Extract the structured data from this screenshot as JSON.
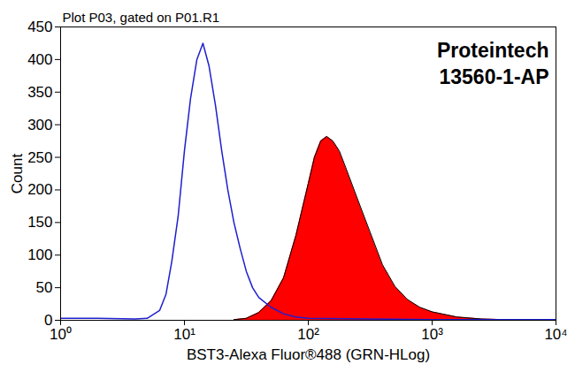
{
  "chart_data": {
    "type": "line",
    "title": "Plot P03, gated on P01.R1",
    "annotations": [
      "Proteintech",
      "13560-1-AP"
    ],
    "x_label": "BST3-Alexa Fluor®488 (GRN-HLog)",
    "y_label": "Count",
    "log": "x",
    "grid": false,
    "xlim": [
      1,
      10000
    ],
    "xticks": [
      {
        "value": 1,
        "label": "10⁰"
      },
      {
        "value": 10,
        "label": "10¹"
      },
      {
        "value": 100,
        "label": "10²"
      },
      {
        "value": 1000,
        "label": "10³"
      },
      {
        "value": 10000,
        "label": "10⁴"
      }
    ],
    "ylim": [
      0,
      450
    ],
    "yticks": [
      0,
      50,
      100,
      150,
      200,
      250,
      300,
      350,
      400,
      450
    ],
    "series": [
      {
        "type": "line",
        "color": "#1f1fd0",
        "x": [
          1,
          2,
          4,
          5,
          6.3,
          7.1,
          7.9,
          8.9,
          10,
          11.2,
          12.6,
          14.1,
          15.8,
          17.8,
          20,
          22.4,
          25.1,
          28.2,
          31.6,
          35.5,
          39.8,
          50,
          63,
          79,
          100,
          1000,
          10000
        ],
        "values": [
          3,
          3,
          2,
          3,
          15,
          40,
          90,
          160,
          260,
          340,
          400,
          425,
          390,
          330,
          260,
          200,
          150,
          110,
          75,
          50,
          35,
          20,
          10,
          5,
          3,
          1,
          1
        ]
      },
      {
        "type": "area",
        "color": "#ff0000",
        "x": [
          25.1,
          31.6,
          39.8,
          50.1,
          63.1,
          79.4,
          100,
          112,
          126,
          141,
          158,
          178,
          200,
          251,
          316,
          398,
          501,
          631,
          794,
          1000,
          1585,
          2512,
          3981
        ],
        "values": [
          1,
          3,
          12,
          30,
          65,
          130,
          210,
          250,
          275,
          282,
          275,
          260,
          235,
          185,
          135,
          85,
          52,
          32,
          20,
          13,
          5,
          2,
          1
        ]
      }
    ]
  }
}
